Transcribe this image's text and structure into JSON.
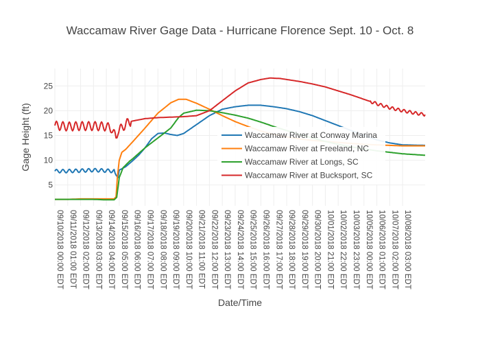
{
  "chart_data": {
    "type": "line",
    "title": "Waccamaw River Gage Data - Hurricane Florence Sept. 10 - Oct. 8",
    "xlabel": "Date/Time",
    "ylabel": "Gage Height (ft)",
    "xlim": [
      0,
      28.75
    ],
    "ylim": [
      0.8,
      28.5
    ],
    "grid": true,
    "legend_position": "center-right",
    "x_tick_labels": [
      "09/10/2018  00:00 EDT",
      "09/11/2018 01:00 EDT",
      "09/12/2018 02:00 EDT",
      "09/13/2018 03:00 EDT",
      "09/14/2018 04:00 EDT",
      "09/15/2018 05:00 EDT",
      "09/16/2018 06:00 EDT",
      "09/17/2018 07:00 EDT",
      "09/18/2018 08:00 EDT",
      "09/19/2018 09:00 EDT",
      "09/20/2018 10:00 EDT",
      "09/21/2018 11:00 EDT",
      "09/22/2018 12:00 EDT",
      "09/23/2018 13:00 EDT",
      "09/24/2018 14:00 EDT",
      "09/25/2018 15:00 EDT",
      "09/26/2018 16:00 EDT",
      "09/27/2018 17:00 EDT",
      "09/28/2018 18:00 EDT",
      "09/29/2018 19:00 EDT",
      "09/30/2018 20:00 EDT",
      "10/01/2018 21:00 EDT",
      "10/02/2018 22:00 EDT",
      "10/03/2018 23:00 EDT",
      "10/05/2018 00:00 EDT",
      "10/06/2018 01:00 EDT",
      "10/07/2018 02:00 EDT",
      "10/08/2018 03:00 EDT"
    ],
    "y_ticks": [
      5,
      10,
      15,
      20,
      25
    ],
    "series": [
      {
        "name": "Waccamaw River at Conway Marina",
        "color": "#1f77b4",
        "oscillation": {
          "amplitude": 0.35,
          "period": 0.5,
          "x_until": 4.6
        },
        "points": [
          [
            0,
            7.8
          ],
          [
            1,
            7.8
          ],
          [
            2,
            7.9
          ],
          [
            3,
            8.0
          ],
          [
            4,
            7.9
          ],
          [
            4.6,
            7.8
          ],
          [
            4.75,
            7.0
          ],
          [
            4.9,
            6.5
          ],
          [
            5.0,
            8.0
          ],
          [
            5.5,
            8.7
          ],
          [
            6,
            9.8
          ],
          [
            6.5,
            11.0
          ],
          [
            7,
            12.5
          ],
          [
            7.5,
            14.3
          ],
          [
            8,
            15.4
          ],
          [
            8.5,
            15.5
          ],
          [
            9,
            15.2
          ],
          [
            9.5,
            15.0
          ],
          [
            10,
            15.4
          ],
          [
            11,
            17.2
          ],
          [
            12,
            19.0
          ],
          [
            13,
            20.3
          ],
          [
            14,
            20.8
          ],
          [
            15,
            21.1
          ],
          [
            16,
            21.1
          ],
          [
            17,
            20.8
          ],
          [
            18,
            20.4
          ],
          [
            19,
            19.8
          ],
          [
            20,
            19.0
          ],
          [
            21,
            18.0
          ],
          [
            22,
            17.0
          ],
          [
            23,
            16.0
          ],
          [
            24,
            15.0
          ],
          [
            25,
            14.1
          ],
          [
            26,
            13.5
          ],
          [
            27,
            13.1
          ],
          [
            28.75,
            13.0
          ]
        ]
      },
      {
        "name": "Waccamaw River at Freeland, NC",
        "color": "#ff7f0e",
        "points": [
          [
            0,
            2.1
          ],
          [
            1,
            2.1
          ],
          [
            2,
            2.2
          ],
          [
            3,
            2.2
          ],
          [
            4,
            2.2
          ],
          [
            4.6,
            2.2
          ],
          [
            4.75,
            2.6
          ],
          [
            4.85,
            6.5
          ],
          [
            5.0,
            10.0
          ],
          [
            5.2,
            11.6
          ],
          [
            5.5,
            12.2
          ],
          [
            6,
            13.6
          ],
          [
            7,
            16.5
          ],
          [
            8,
            19.5
          ],
          [
            9,
            21.6
          ],
          [
            9.6,
            22.3
          ],
          [
            10.2,
            22.3
          ],
          [
            11,
            21.5
          ],
          [
            12,
            20.3
          ],
          [
            13,
            19.0
          ],
          [
            14,
            17.8
          ],
          [
            15,
            16.8
          ],
          [
            16,
            15.9
          ],
          [
            17,
            15.2
          ],
          [
            18,
            14.7
          ],
          [
            19,
            14.3
          ],
          [
            20,
            14.0
          ],
          [
            21,
            13.8
          ],
          [
            22,
            13.6
          ],
          [
            23,
            13.4
          ],
          [
            24,
            13.2
          ],
          [
            25,
            13.1
          ],
          [
            26,
            13.0
          ],
          [
            27,
            12.9
          ],
          [
            28.75,
            12.9
          ]
        ]
      },
      {
        "name": "Waccamaw River at Longs, SC",
        "color": "#2ca02c",
        "points": [
          [
            0,
            2.1
          ],
          [
            1,
            2.1
          ],
          [
            2,
            2.1
          ],
          [
            3,
            2.1
          ],
          [
            4,
            2.0
          ],
          [
            4.6,
            2.0
          ],
          [
            4.8,
            2.5
          ],
          [
            5.0,
            6.5
          ],
          [
            5.3,
            8.5
          ],
          [
            5.8,
            9.8
          ],
          [
            6,
            10.2
          ],
          [
            7,
            12.5
          ],
          [
            8,
            14.5
          ],
          [
            9,
            16.5
          ],
          [
            9.6,
            18.6
          ],
          [
            10,
            19.5
          ],
          [
            11,
            20.1
          ],
          [
            12,
            20.0
          ],
          [
            13,
            19.6
          ],
          [
            14,
            19.1
          ],
          [
            15,
            18.5
          ],
          [
            16,
            17.7
          ],
          [
            17,
            16.8
          ],
          [
            18,
            16.0
          ],
          [
            19,
            15.2
          ],
          [
            20,
            14.5
          ],
          [
            21,
            13.8
          ],
          [
            22,
            13.2
          ],
          [
            23,
            12.7
          ],
          [
            24,
            12.3
          ],
          [
            25,
            11.9
          ],
          [
            26,
            11.6
          ],
          [
            27,
            11.3
          ],
          [
            28.75,
            11.0
          ]
        ]
      },
      {
        "name": "Waccamaw River at Bucksport, SC",
        "color": "#d62728",
        "oscillation": {
          "amplitude": 0.9,
          "period": 0.5,
          "x_until": 5.9
        },
        "points": [
          [
            0,
            17.0
          ],
          [
            1,
            16.8
          ],
          [
            2,
            16.9
          ],
          [
            3,
            16.9
          ],
          [
            4,
            16.8
          ],
          [
            4.4,
            16.4
          ],
          [
            4.75,
            14.5
          ],
          [
            4.9,
            16.0
          ],
          [
            5.2,
            16.5
          ],
          [
            5.6,
            17.5
          ],
          [
            6,
            17.9
          ],
          [
            7,
            18.4
          ],
          [
            8,
            18.6
          ],
          [
            9,
            18.7
          ],
          [
            10,
            18.8
          ],
          [
            11,
            19.0
          ],
          [
            12,
            20.0
          ],
          [
            13,
            22.0
          ],
          [
            14,
            24.0
          ],
          [
            15,
            25.6
          ],
          [
            16,
            26.3
          ],
          [
            16.7,
            26.6
          ],
          [
            17.5,
            26.5
          ],
          [
            18,
            26.3
          ],
          [
            19,
            25.9
          ],
          [
            20,
            25.4
          ],
          [
            21,
            24.8
          ],
          [
            22,
            24.0
          ],
          [
            23,
            23.2
          ],
          [
            24,
            22.3
          ],
          [
            25,
            21.4
          ],
          [
            26,
            20.6
          ],
          [
            27,
            20.0
          ],
          [
            28,
            19.5
          ],
          [
            28.75,
            19.2
          ]
        ],
        "jitter": {
          "amplitude": 0.3,
          "x_from": 24.5
        }
      }
    ]
  }
}
